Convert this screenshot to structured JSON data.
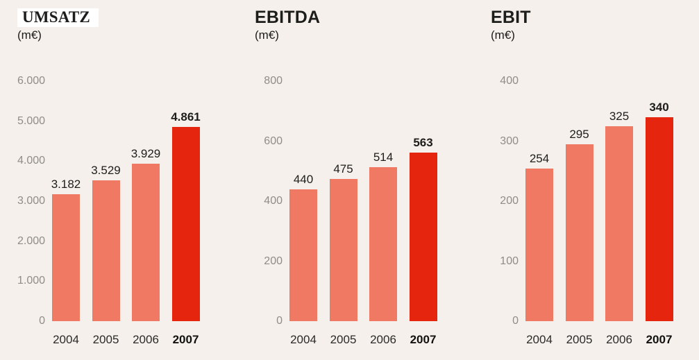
{
  "colors": {
    "background": "#f5f0eb",
    "bar": "#ef7963",
    "highlight": "#e6250e",
    "tick_text": "#8f8c89",
    "value_text": "#1d1d1b",
    "year_text": "#2a2a28",
    "umsatz_box_bg": "#ffffff"
  },
  "chart_data": [
    {
      "type": "bar",
      "title": "UMSATZ",
      "unit": "(m€)",
      "title_style": "boxed-serif",
      "categories": [
        "2004",
        "2005",
        "2006",
        "2007"
      ],
      "values": [
        3182,
        3529,
        3929,
        4861
      ],
      "value_labels": [
        "3.182",
        "3.529",
        "3.929",
        "4.861"
      ],
      "highlight_index": 3,
      "ylim": [
        0,
        6000
      ],
      "yticks": [
        {
          "value": 6000,
          "label": "6.000"
        },
        {
          "value": 5000,
          "label": "5.000"
        },
        {
          "value": 4000,
          "label": "4.000"
        },
        {
          "value": 3000,
          "label": "3.000"
        },
        {
          "value": 2000,
          "label": "2.000"
        },
        {
          "value": 1000,
          "label": "1.000"
        },
        {
          "value": 0,
          "label": "0"
        }
      ],
      "grid": false,
      "legend": null
    },
    {
      "type": "bar",
      "title": "EBITDA",
      "unit": "(m€)",
      "title_style": "plain",
      "categories": [
        "2004",
        "2005",
        "2006",
        "2007"
      ],
      "values": [
        440,
        475,
        514,
        563
      ],
      "value_labels": [
        "440",
        "475",
        "514",
        "563"
      ],
      "highlight_index": 3,
      "ylim": [
        0,
        800
      ],
      "yticks": [
        {
          "value": 800,
          "label": "800"
        },
        {
          "value": 600,
          "label": "600"
        },
        {
          "value": 400,
          "label": "400"
        },
        {
          "value": 200,
          "label": "200"
        },
        {
          "value": 0,
          "label": "0"
        }
      ],
      "grid": false,
      "legend": null
    },
    {
      "type": "bar",
      "title": "EBIT",
      "unit": "(m€)",
      "title_style": "plain",
      "categories": [
        "2004",
        "2005",
        "2006",
        "2007"
      ],
      "values": [
        254,
        295,
        325,
        340
      ],
      "value_labels": [
        "254",
        "295",
        "325",
        "340"
      ],
      "highlight_index": 3,
      "ylim": [
        0,
        400
      ],
      "yticks": [
        {
          "value": 400,
          "label": "400"
        },
        {
          "value": 300,
          "label": "300"
        },
        {
          "value": 200,
          "label": "200"
        },
        {
          "value": 100,
          "label": "100"
        },
        {
          "value": 0,
          "label": "0"
        }
      ],
      "grid": false,
      "legend": null
    }
  ]
}
